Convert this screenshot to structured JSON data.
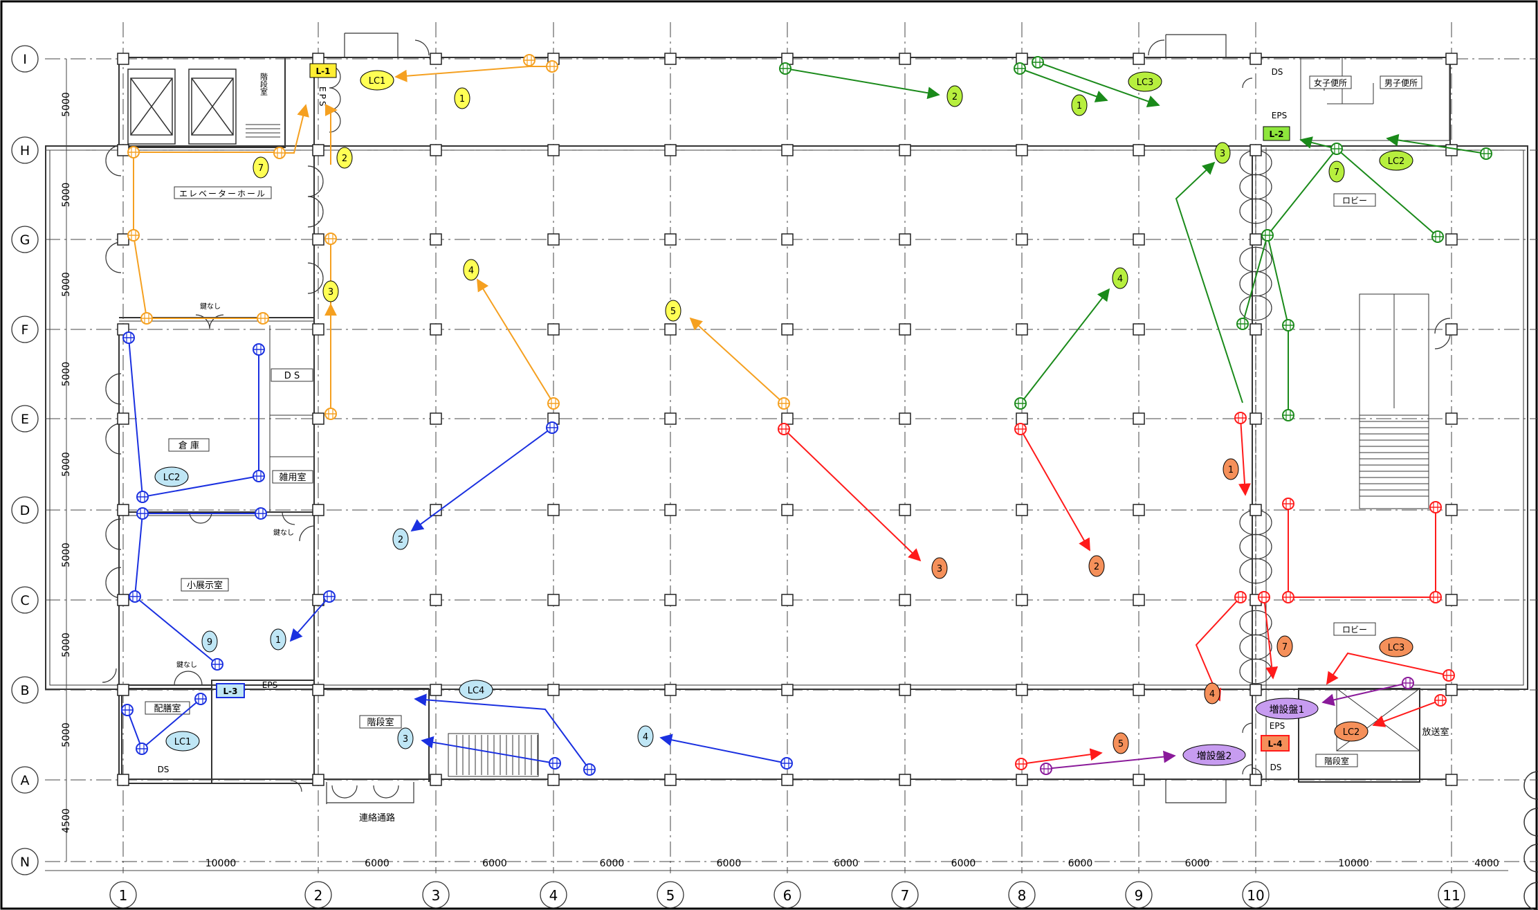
{
  "grid": {
    "columns": [
      "1",
      "2",
      "3",
      "4",
      "5",
      "6",
      "7",
      "8",
      "9",
      "10",
      "11"
    ],
    "rows": [
      "I",
      "H",
      "G",
      "F",
      "E",
      "D",
      "C",
      "B",
      "A",
      "N"
    ],
    "col_spans": [
      "10000",
      "6000",
      "6000",
      "6000",
      "6000",
      "6000",
      "6000",
      "6000",
      "6000",
      "10000",
      "4000"
    ],
    "row_spans": [
      "5000",
      "5000",
      "5000",
      "5000",
      "5000",
      "5000",
      "5000",
      "5000",
      "4500"
    ]
  },
  "rooms": {
    "stair_top": "階段室",
    "eps_left": "EPS",
    "elevator_hall": "エレベーターホール",
    "no_key_1": "鍵なし",
    "ds_1": "D S",
    "warehouse": "倉 庫",
    "misc_room": "雑用室",
    "no_key_2": "鍵なし",
    "small_exhibition": "小展示室",
    "no_key_3": "鍵なし",
    "eps_b": "EPS",
    "distribution_room": "配膳室",
    "ds_2": "DS",
    "stair_bottom": "階段室",
    "corridor": "連絡通路",
    "ds_top_right": "DS",
    "womens_wc": "女子便所",
    "mens_wc": "男子便所",
    "eps_right": "EPS",
    "lobby_1": "ロビー",
    "lobby_2": "ロビー",
    "eps_right_bottom": "EPS",
    "ds_right_bottom": "DS",
    "stair_right": "階段室",
    "broadcast_room": "放送室"
  },
  "panels": {
    "L1": "L-1",
    "L2": "L-2",
    "L3": "L-3",
    "L4": "L-4",
    "ext1": "増設盤1",
    "ext2": "増設盤2"
  },
  "circuits": {
    "orange": {
      "color": "#f5a020",
      "badge": "#ffff55",
      "labels": [
        "LC1",
        "1",
        "2",
        "3",
        "4",
        "5",
        "7"
      ]
    },
    "green": {
      "color": "#1a8a1a",
      "badge": "#b7ef3e",
      "labels": [
        "LC3",
        "1",
        "2",
        "3",
        "4",
        "LC2",
        "7"
      ]
    },
    "blue": {
      "color": "#1a30e0",
      "badge": "#bfe6f5",
      "labels": [
        "LC2",
        "1",
        "2",
        "3",
        "4",
        "9",
        "LC1",
        "LC4"
      ]
    },
    "red": {
      "color": "#ff1a1a",
      "badge": "#f5905a",
      "labels": [
        "1",
        "2",
        "3",
        "4",
        "5",
        "7",
        "LC3",
        "LC2"
      ]
    },
    "purple": {
      "color": "#8a1a9a",
      "badge": "#c79cf0"
    }
  }
}
